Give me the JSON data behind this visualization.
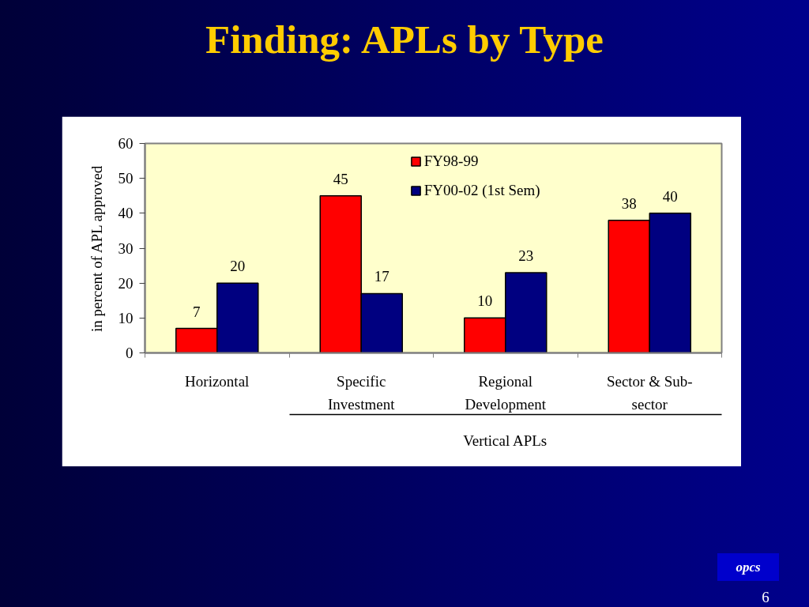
{
  "chart_data": {
    "type": "bar",
    "title": "Finding: APLs by Type",
    "ylabel": "in percent of APL approved",
    "categories": [
      "Horizontal",
      "Specific Investment",
      "Regional Development",
      "Sector & Sub-sector"
    ],
    "series": [
      {
        "name": "FY98-99",
        "color": "#ff0000",
        "values": [
          7,
          45,
          10,
          38
        ]
      },
      {
        "name": "FY00-02 (1st Sem)",
        "color": "#000080",
        "values": [
          20,
          17,
          23,
          40
        ]
      }
    ],
    "ylim": [
      0,
      60
    ],
    "yticks": [
      0,
      10,
      20,
      30,
      40,
      50,
      60
    ],
    "grid": false,
    "legend": "top",
    "data_labels": true,
    "annotations": [
      "Vertical APLs",
      "opcs",
      "6"
    ]
  }
}
